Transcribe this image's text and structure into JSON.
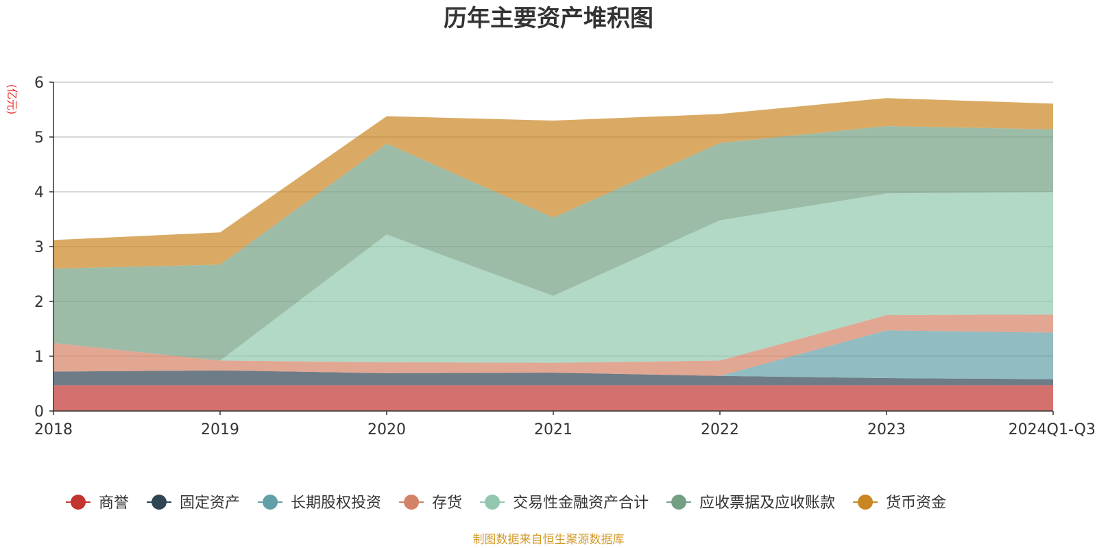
{
  "chart_data": {
    "type": "area",
    "stacked": true,
    "title": "历年主要资产堆积图",
    "unit": "(亿元)",
    "categories": [
      "2018",
      "2019",
      "2020",
      "2021",
      "2022",
      "2023",
      "2024Q1-Q3"
    ],
    "ylim": [
      0,
      6
    ],
    "yticks": [
      0,
      1,
      2,
      3,
      4,
      5,
      6
    ],
    "grid": true,
    "legend_position": "bottom",
    "source": "制图数据来自恒生聚源数据库",
    "series": [
      {
        "name": "商誉",
        "color": "#c23531",
        "values": [
          0.47,
          0.47,
          0.47,
          0.47,
          0.47,
          0.47,
          0.47
        ]
      },
      {
        "name": "固定资产",
        "color": "#2f4554",
        "values": [
          0.25,
          0.27,
          0.22,
          0.23,
          0.17,
          0.13,
          0.11
        ]
      },
      {
        "name": "长期股权投资",
        "color": "#61a0a8",
        "values": [
          0,
          0,
          0,
          0,
          0,
          0.87,
          0.85
        ]
      },
      {
        "name": "存货",
        "color": "#d48265",
        "values": [
          0.52,
          0.18,
          0.2,
          0.18,
          0.28,
          0.28,
          0.33
        ]
      },
      {
        "name": "交易性金融资产合计",
        "color": "#91c7ae",
        "values": [
          0,
          0,
          2.33,
          1.22,
          2.56,
          2.22,
          2.24
        ]
      },
      {
        "name": "应收票据及应收账款",
        "color": "#749f83",
        "values": [
          1.36,
          1.75,
          1.66,
          1.43,
          1.41,
          1.23,
          1.14
        ]
      },
      {
        "name": "货币资金",
        "color": "#ca8622",
        "values": [
          0.52,
          0.59,
          0.5,
          1.77,
          0.53,
          0.51,
          0.47
        ]
      }
    ]
  }
}
